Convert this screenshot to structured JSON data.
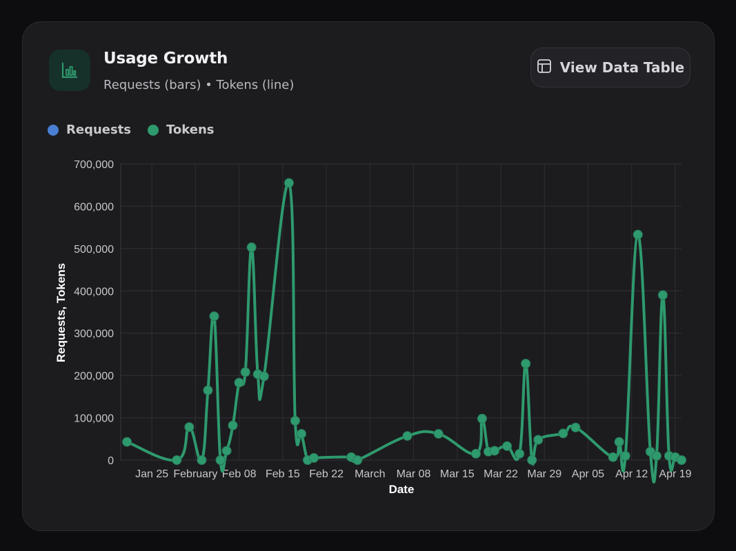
{
  "header": {
    "title": "Usage Growth",
    "subtitle": "Requests (bars) • Tokens (line)",
    "icon": "bar-chart-icon",
    "view_button_label": "View Data Table",
    "view_button_icon": "table-layout-icon"
  },
  "colors": {
    "requests": "#4a7fd4",
    "tokens": "#2e9a6e",
    "icon_accent": "#2e9a6e"
  },
  "legend": [
    {
      "label": "Requests",
      "color": "#4a7fd4"
    },
    {
      "label": "Tokens",
      "color": "#2e9a6e"
    }
  ],
  "chart_data": {
    "type": "line",
    "xlabel": "Date",
    "ylabel": "Requests, Tokens",
    "ylim": [
      0,
      700000
    ],
    "yticks": [
      0,
      100000,
      200000,
      300000,
      400000,
      500000,
      600000,
      700000
    ],
    "ytick_labels": [
      "0",
      "100,000",
      "200,000",
      "300,000",
      "400,000",
      "500,000",
      "600,000",
      "700,000"
    ],
    "xlim": [
      "2026-01-20",
      "2026-04-20"
    ],
    "xticks": [
      "2026-01-25",
      "2026-02-01",
      "2026-02-08",
      "2026-02-15",
      "2026-02-22",
      "2026-03-01",
      "2026-03-08",
      "2026-03-15",
      "2026-03-22",
      "2026-03-29",
      "2026-04-05",
      "2026-04-12",
      "2026-04-19"
    ],
    "xtick_labels": [
      "Jan 25",
      "February",
      "Feb 08",
      "Feb 15",
      "Feb 22",
      "March",
      "Mar 08",
      "Mar 15",
      "Mar 22",
      "Mar 29",
      "Apr 05",
      "Apr 12",
      "Apr 19"
    ],
    "grid": true,
    "legend_position": "top-left",
    "series": [
      {
        "name": "Tokens",
        "x": [
          "2026-01-21",
          "2026-01-29",
          "2026-01-31",
          "2026-02-02",
          "2026-02-03",
          "2026-02-04",
          "2026-02-05",
          "2026-02-06",
          "2026-02-07",
          "2026-02-08",
          "2026-02-09",
          "2026-02-10",
          "2026-02-11",
          "2026-02-12",
          "2026-02-16",
          "2026-02-17",
          "2026-02-18",
          "2026-02-19",
          "2026-02-20",
          "2026-02-26",
          "2026-02-27",
          "2026-03-07",
          "2026-03-12",
          "2026-03-18",
          "2026-03-19",
          "2026-03-20",
          "2026-03-21",
          "2026-03-23",
          "2026-03-25",
          "2026-03-26",
          "2026-03-27",
          "2026-03-28",
          "2026-04-01",
          "2026-04-03",
          "2026-04-09",
          "2026-04-10",
          "2026-04-11",
          "2026-04-13",
          "2026-04-15",
          "2026-04-16",
          "2026-04-17",
          "2026-04-18",
          "2026-04-19",
          "2026-04-22"
        ],
        "values": [
          43000,
          0,
          78000,
          0,
          165000,
          340000,
          0,
          22000,
          82000,
          183000,
          208000,
          503000,
          203000,
          198000,
          655000,
          93000,
          62000,
          0,
          5000,
          7000,
          0,
          57000,
          62000,
          15000,
          98000,
          20000,
          22000,
          33000,
          15000,
          228000,
          0,
          48000,
          63000,
          77000,
          7000,
          43000,
          10000,
          533000,
          20000,
          10000,
          390000,
          10000,
          7000,
          0
        ]
      }
    ]
  }
}
